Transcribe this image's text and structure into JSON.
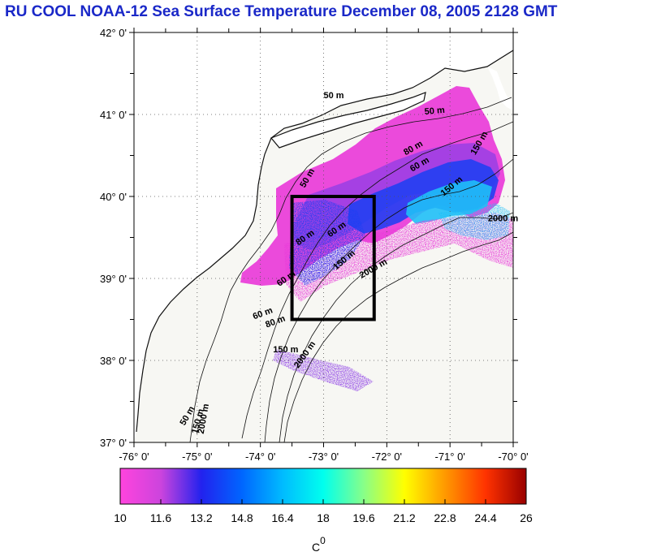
{
  "title": "RU COOL  NOAA-12 Sea Surface Temperature December 08, 2005 2128 GMT",
  "map": {
    "lon_range": [
      -76,
      -70
    ],
    "lat_range": [
      37,
      42
    ],
    "x_ticks": [
      {
        "lon": -76,
        "label": "-76° 0'"
      },
      {
        "lon": -75,
        "label": "-75° 0'"
      },
      {
        "lon": -74,
        "label": "-74° 0'"
      },
      {
        "lon": -73,
        "label": "-73° 0'"
      },
      {
        "lon": -72,
        "label": "-72° 0'"
      },
      {
        "lon": -71,
        "label": "-71° 0'"
      },
      {
        "lon": -70,
        "label": "-70° 0'"
      }
    ],
    "y_ticks": [
      {
        "lat": 42,
        "label": "42° 0'"
      },
      {
        "lat": 41,
        "label": "41° 0'"
      },
      {
        "lat": 40,
        "label": "40° 0'"
      },
      {
        "lat": 39,
        "label": "39° 0'"
      },
      {
        "lat": 38,
        "label": "38° 0'"
      },
      {
        "lat": 37,
        "label": "37° 0'"
      }
    ],
    "grid": "dotted",
    "study_box": {
      "lon_min": -73.5,
      "lon_max": -72.2,
      "lat_min": 38.5,
      "lat_max": 40.0
    },
    "contour_labels": [
      {
        "text": "50 m",
        "lon": -73.0,
        "lat": 41.2,
        "angle": 0
      },
      {
        "text": "50 m",
        "lon": -71.4,
        "lat": 41.0,
        "angle": -5
      },
      {
        "text": "50 m",
        "lon": -73.3,
        "lat": 40.1,
        "angle": -60
      },
      {
        "text": "60 m",
        "lon": -71.6,
        "lat": 40.3,
        "angle": -30
      },
      {
        "text": "80 m",
        "lon": -71.7,
        "lat": 40.5,
        "angle": -30
      },
      {
        "text": "150 m",
        "lon": -70.6,
        "lat": 40.5,
        "angle": -60
      },
      {
        "text": "150 m",
        "lon": -71.1,
        "lat": 40.0,
        "angle": -40
      },
      {
        "text": "2000 m",
        "lon": -70.4,
        "lat": 39.7,
        "angle": 0
      },
      {
        "text": "2000 m",
        "lon": -72.4,
        "lat": 39.0,
        "angle": -30
      },
      {
        "text": "80 m",
        "lon": -73.4,
        "lat": 39.4,
        "angle": -35
      },
      {
        "text": "60 m",
        "lon": -72.9,
        "lat": 39.5,
        "angle": -35
      },
      {
        "text": "150 m",
        "lon": -72.8,
        "lat": 39.1,
        "angle": -40
      },
      {
        "text": "60 m",
        "lon": -73.7,
        "lat": 38.9,
        "angle": -35
      },
      {
        "text": "60 m",
        "lon": -74.1,
        "lat": 38.5,
        "angle": -20
      },
      {
        "text": "80 m",
        "lon": -73.9,
        "lat": 38.4,
        "angle": -20
      },
      {
        "text": "150 m",
        "lon": -73.8,
        "lat": 38.1,
        "angle": 0
      },
      {
        "text": "2000 m",
        "lon": -73.4,
        "lat": 37.9,
        "angle": -55
      },
      {
        "text": "50 m",
        "lon": -75.2,
        "lat": 37.2,
        "angle": -60
      },
      {
        "text": "150 m",
        "lon": -75.0,
        "lat": 37.1,
        "angle": -75
      },
      {
        "text": "2000 m",
        "lon": -74.9,
        "lat": 37.1,
        "angle": -80
      }
    ]
  },
  "colorbar": {
    "colors": [
      "#ff44dd",
      "#cc44dd",
      "#2222ee",
      "#0066ff",
      "#00bbff",
      "#00ffee",
      "#88ff88",
      "#ffff00",
      "#ff9900",
      "#ff3300",
      "#990000"
    ],
    "ticks": [
      "10",
      "11.6",
      "13.2",
      "14.8",
      "16.4",
      "18",
      "19.6",
      "21.2",
      "22.8",
      "24.4",
      "26"
    ],
    "range": [
      10,
      26
    ],
    "unit_label": "C",
    "unit_superscript": "0"
  },
  "colors": {
    "title": "#1a28c8",
    "land": "#ffffff",
    "ocean": "#f7f7f3",
    "sst_magenta": "#e93bd9",
    "sst_purple": "#8d3ee6",
    "sst_blue": "#1e3ff2",
    "sst_cyan": "#1fbff7"
  }
}
